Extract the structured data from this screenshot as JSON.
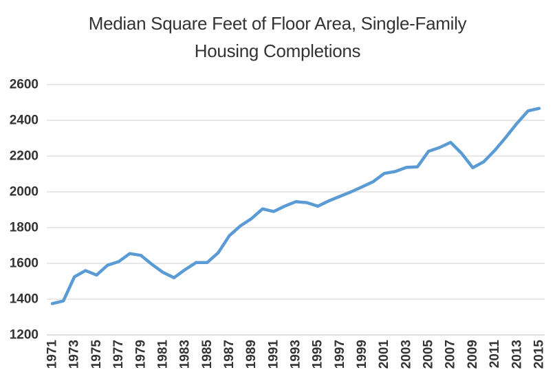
{
  "chart_data": {
    "type": "line",
    "title": "Median Square Feet of Floor Area, Single-Family Housing Completions",
    "title_lines": [
      "Median Square Feet of Floor Area, Single-Family",
      "Housing Completions"
    ],
    "xlabel": "",
    "ylabel": "",
    "x": [
      1971,
      1972,
      1973,
      1974,
      1975,
      1976,
      1977,
      1978,
      1979,
      1980,
      1981,
      1982,
      1983,
      1984,
      1985,
      1986,
      1987,
      1988,
      1989,
      1990,
      1991,
      1992,
      1993,
      1994,
      1995,
      1996,
      1997,
      1998,
      1999,
      2000,
      2001,
      2002,
      2003,
      2004,
      2005,
      2006,
      2007,
      2008,
      2009,
      2010,
      2011,
      2012,
      2013,
      2014,
      2015
    ],
    "series": [
      {
        "name": "Median square feet of floor area",
        "values": [
          1375,
          1390,
          1525,
          1560,
          1535,
          1590,
          1610,
          1655,
          1645,
          1595,
          1550,
          1520,
          1565,
          1605,
          1605,
          1660,
          1755,
          1810,
          1850,
          1905,
          1890,
          1920,
          1945,
          1940,
          1920,
          1950,
          1975,
          2000,
          2028,
          2057,
          2103,
          2114,
          2137,
          2140,
          2227,
          2248,
          2277,
          2215,
          2135,
          2169,
          2233,
          2306,
          2384,
          2453,
          2467
        ]
      }
    ],
    "ylim": [
      1200,
      2600
    ],
    "yticks": [
      1200,
      1400,
      1600,
      1800,
      2000,
      2200,
      2400,
      2600
    ],
    "xtick_labels": [
      "1971",
      "1973",
      "1975",
      "1977",
      "1979",
      "1981",
      "1983",
      "1985",
      "1987",
      "1989",
      "1991",
      "1993",
      "1995",
      "1997",
      "1999",
      "2001",
      "2003",
      "2005",
      "2007",
      "2009",
      "2011",
      "2013",
      "2015"
    ],
    "grid": true,
    "legend": "none",
    "colors": {
      "line": "#5B9BD5",
      "gridline": "#D9D9D9",
      "axis_line": "#C9C9C9",
      "tick_label": "#333333",
      "title": "#333333",
      "background": "#FFFFFF"
    }
  }
}
